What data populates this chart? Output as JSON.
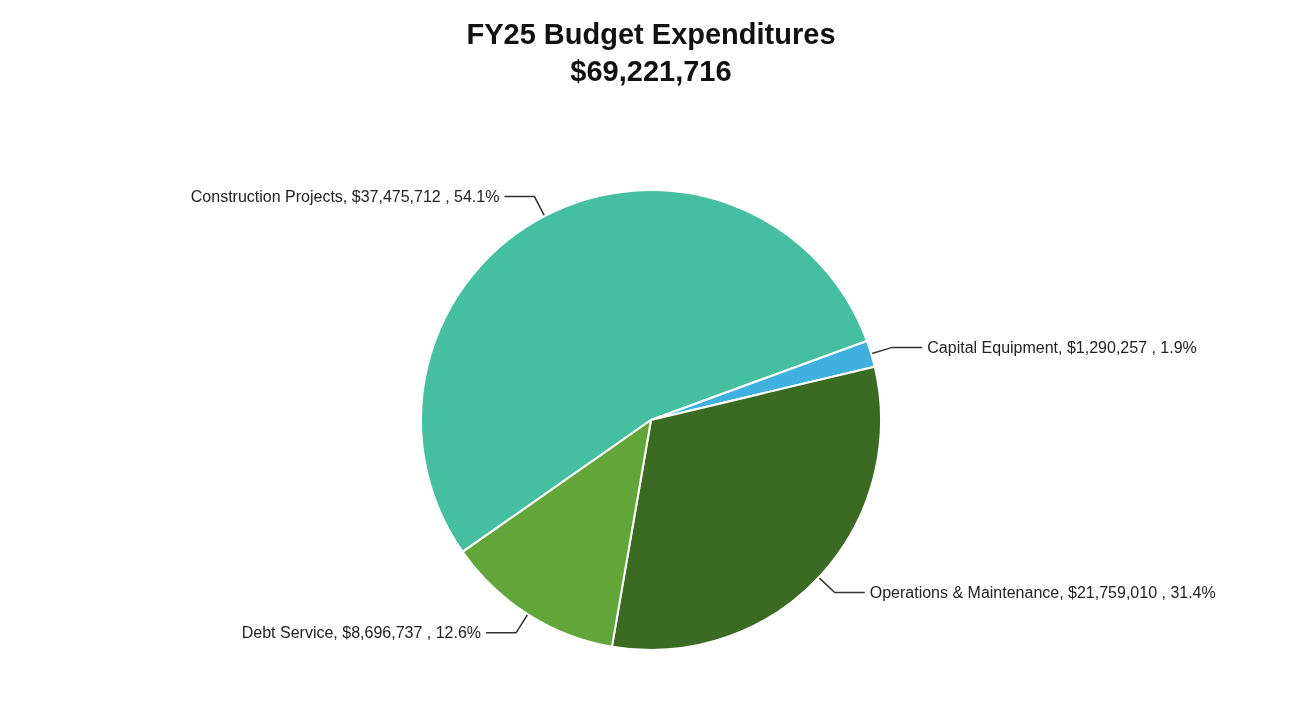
{
  "chart_data": {
    "type": "pie",
    "title": "FY25 Budget Expenditures",
    "subtitle": "$69,221,716",
    "categories": [
      "Construction Projects",
      "Capital Equipment",
      "Operations & Maintenance",
      "Debt Service"
    ],
    "values": [
      37475712,
      1290257,
      21759010,
      8696737
    ],
    "value_labels": [
      "$37,475,712 , 54.1%",
      "$1,290,257 , 1.9%",
      "$21,759,010 , 31.4%",
      "$8,696,737 , 12.6%"
    ],
    "colors": [
      "#45bfa0",
      "#3fb0e0",
      "#3b6a23",
      "#62a63a"
    ],
    "legend": false
  }
}
